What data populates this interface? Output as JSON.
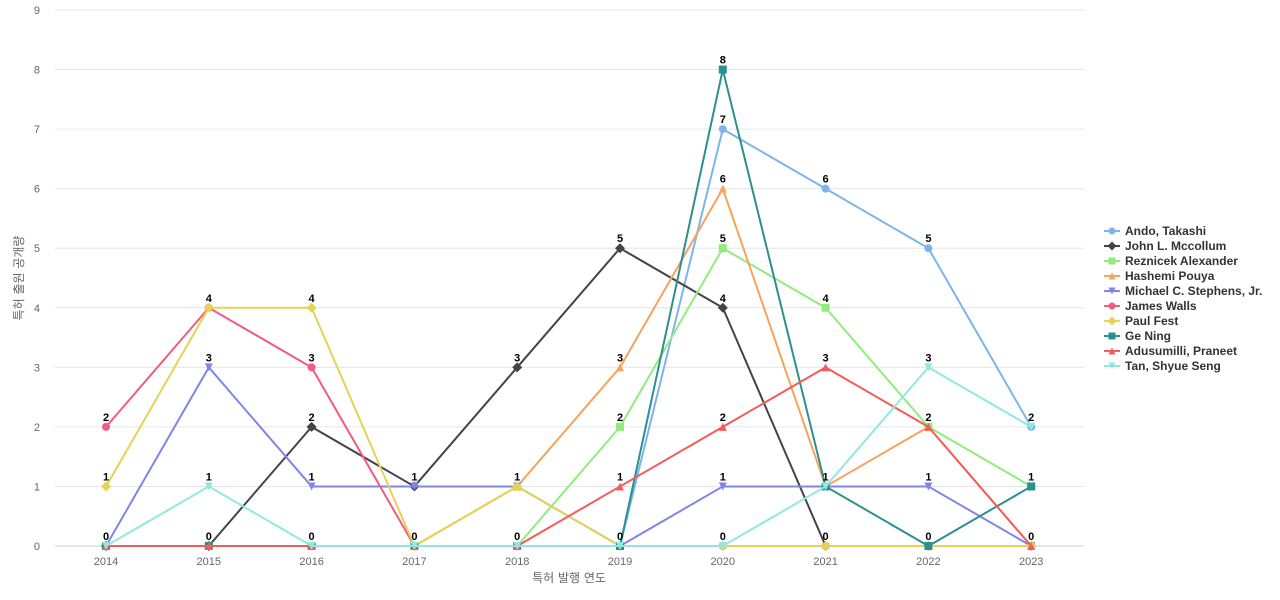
{
  "chart_data": {
    "type": "line",
    "title": "",
    "xlabel": "특허 발행 연도",
    "ylabel": "특허 출원 공개량",
    "x": [
      "2014",
      "2015",
      "2016",
      "2017",
      "2018",
      "2019",
      "2020",
      "2021",
      "2022",
      "2023"
    ],
    "yticks": [
      "0",
      "1",
      "2",
      "3",
      "4",
      "5",
      "6",
      "7",
      "8",
      "9"
    ],
    "ylim": [
      0,
      9
    ],
    "grid": true,
    "legend_position": "right",
    "data_labels_shown": [
      {
        "x": "2014",
        "value": "0"
      },
      {
        "x": "2014",
        "value": "1"
      },
      {
        "x": "2014",
        "value": "2"
      },
      {
        "x": "2015",
        "value": "0"
      },
      {
        "x": "2015",
        "value": "1"
      },
      {
        "x": "2015",
        "value": "3"
      },
      {
        "x": "2015",
        "value": "4"
      },
      {
        "x": "2016",
        "value": "0"
      },
      {
        "x": "2016",
        "value": "1"
      },
      {
        "x": "2016",
        "value": "2"
      },
      {
        "x": "2016",
        "value": "3"
      },
      {
        "x": "2016",
        "value": "4"
      },
      {
        "x": "2017",
        "value": "0"
      },
      {
        "x": "2017",
        "value": "1"
      },
      {
        "x": "2018",
        "value": "0"
      },
      {
        "x": "2018",
        "value": "1"
      },
      {
        "x": "2018",
        "value": "3"
      },
      {
        "x": "2019",
        "value": "0"
      },
      {
        "x": "2019",
        "value": "1"
      },
      {
        "x": "2019",
        "value": "2"
      },
      {
        "x": "2019",
        "value": "3"
      },
      {
        "x": "2019",
        "value": "5"
      },
      {
        "x": "2020",
        "value": "0"
      },
      {
        "x": "2020",
        "value": "1"
      },
      {
        "x": "2020",
        "value": "2"
      },
      {
        "x": "2020",
        "value": "4"
      },
      {
        "x": "2020",
        "value": "5"
      },
      {
        "x": "2020",
        "value": "6"
      },
      {
        "x": "2020",
        "value": "7"
      },
      {
        "x": "2020",
        "value": "8"
      },
      {
        "x": "2021",
        "value": "0"
      },
      {
        "x": "2021",
        "value": "1"
      },
      {
        "x": "2021",
        "value": "3"
      },
      {
        "x": "2021",
        "value": "4"
      },
      {
        "x": "2021",
        "value": "6"
      },
      {
        "x": "2022",
        "value": "0"
      },
      {
        "x": "2022",
        "value": "1"
      },
      {
        "x": "2022",
        "value": "2"
      },
      {
        "x": "2022",
        "value": "3"
      },
      {
        "x": "2022",
        "value": "5"
      },
      {
        "x": "2023",
        "value": "0"
      },
      {
        "x": "2023",
        "value": "1"
      },
      {
        "x": "2023",
        "value": "2"
      }
    ],
    "series": [
      {
        "name": "Ando, Takashi",
        "color": "#7cb5ec",
        "marker": "circle",
        "values": [
          0,
          0,
          0,
          0,
          0,
          0,
          7,
          6,
          5,
          2
        ]
      },
      {
        "name": "John L. Mccollum",
        "color": "#434348",
        "marker": "diamond",
        "values": [
          0,
          0,
          2,
          1,
          3,
          5,
          4,
          0,
          0,
          0
        ]
      },
      {
        "name": "Reznicek Alexander",
        "color": "#90ed7d",
        "marker": "square",
        "values": [
          0,
          0,
          0,
          0,
          0,
          2,
          5,
          4,
          2,
          1
        ]
      },
      {
        "name": "Hashemi Pouya",
        "color": "#f7a35c",
        "marker": "triangle",
        "values": [
          0,
          0,
          0,
          0,
          1,
          3,
          6,
          1,
          2,
          0
        ]
      },
      {
        "name": "Michael C. Stephens, Jr.",
        "color": "#8085e9",
        "marker": "triangle-down",
        "values": [
          0,
          3,
          1,
          1,
          1,
          0,
          1,
          1,
          1,
          0
        ]
      },
      {
        "name": "James Walls",
        "color": "#f15c80",
        "marker": "circle",
        "values": [
          2,
          4,
          3,
          0,
          0,
          0,
          0,
          0,
          0,
          0
        ]
      },
      {
        "name": "Paul Fest",
        "color": "#e4d354",
        "marker": "diamond",
        "values": [
          1,
          4,
          4,
          0,
          1,
          0,
          0,
          0,
          0,
          0
        ]
      },
      {
        "name": "Ge Ning",
        "color": "#2b908f",
        "marker": "square",
        "values": [
          0,
          0,
          0,
          0,
          0,
          0,
          8,
          1,
          0,
          1
        ]
      },
      {
        "name": "Adusumilli, Praneet",
        "color": "#f45b5b",
        "marker": "triangle",
        "values": [
          0,
          0,
          0,
          0,
          0,
          1,
          2,
          3,
          2,
          0
        ]
      },
      {
        "name": "Tan, Shyue Seng",
        "color": "#91e8e1",
        "marker": "triangle-down",
        "values": [
          0,
          1,
          0,
          0,
          0,
          0,
          0,
          1,
          3,
          2
        ]
      }
    ]
  }
}
